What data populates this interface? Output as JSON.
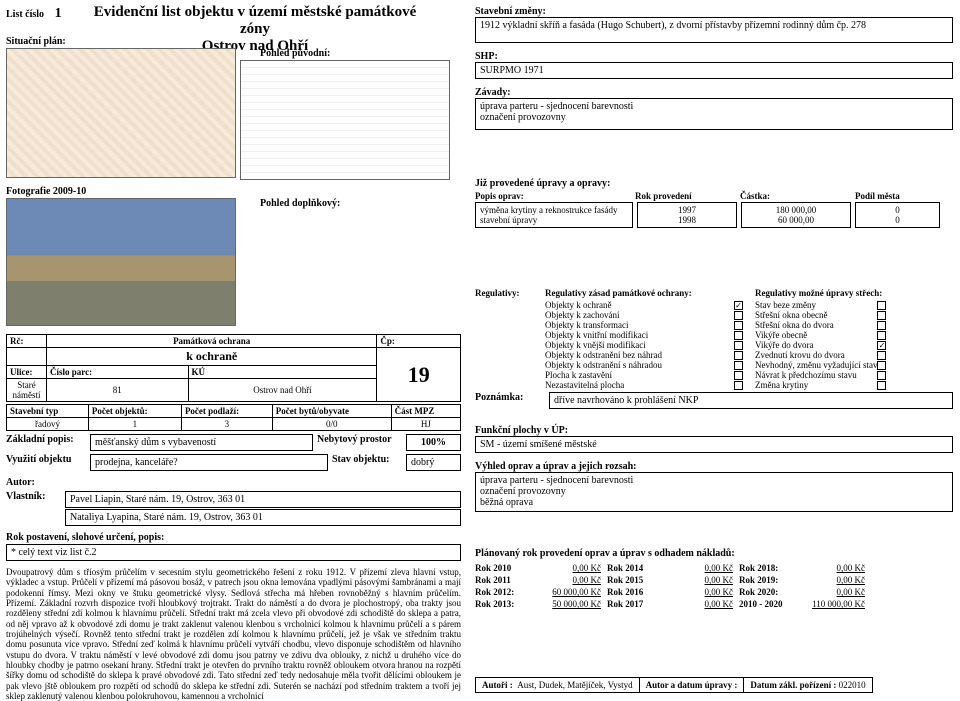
{
  "header": {
    "list_label": "List číslo",
    "list_number": "1",
    "title_line1": "Evidenční list objektu v území městské památkové zóny",
    "title_line2": "Ostrov nad Ohří",
    "plan_label": "Situační plán:",
    "view_orig_label": "Pohled původní:",
    "view_supp_label": "Pohled doplňkový:",
    "photo_label": "Fotografie 2009-10"
  },
  "left": {
    "rc_label": "Rč:",
    "ochrana_label": "Památková ochrana",
    "k_ochrane": "k ochraně",
    "cp_label": "Čp:",
    "cp_value": "19",
    "ulice_label": "Ulice:",
    "cislo_parc_label": "Číslo parc:",
    "ku_label": "KÚ",
    "ulice_value": "Staré náměstí",
    "cislo_parc_value": "81",
    "ku_value": "Ostrov nad Ohří",
    "stavtyp_label": "Stavební typ",
    "pocet_obj_label": "Počet objektů:",
    "pocet_podlazi_label": "Počet podlaží:",
    "pocet_bytu_label": "Počet bytů/obyvate",
    "cast_mpz_label": "Část MPZ",
    "stavtyp_value": "řadový",
    "pocet_obj_value": "1",
    "pocet_podlazi_value": "3",
    "pocet_bytu_value": "0/0",
    "cast_mpz_value": "HJ",
    "zakl_popis_label": "Základní popis:",
    "zakl_popis_value": "měšťanský dům s vybaveností",
    "nebyt_label": "Nebytový prostor",
    "nebyt_value": "100%",
    "vyuziti_label": "Využití objektu",
    "vyuziti_value": "prodejna, kanceláře?",
    "stav_obj_label": "Stav objektu:",
    "stav_obj_value": "dobrý",
    "autor_label": "Autor:",
    "vlastnik_label": "Vlastník:",
    "vlastnik1": "Pavel Liapin, Staré nám. 19, Ostrov, 363 01",
    "vlastnik2": "Nataliya Lyapina, Staré nám. 19, Ostrov, 363 01",
    "rok_post_label": "Rok postavení, slohové určení, popis:",
    "rok_post_ref": "* celý text viz list č.2",
    "long_desc": "Dvoupatrový dům s tříosým průčelím v secesním stylu geometrického řešení z roku 1912. V přízemí zleva hlavní vstup, výkladec a vstup. Průčelí v přízemí má pásovou bosáž, v patrech jsou okna lemována vpadlými pásovými šambránami a mají podokenní římsy. Mezi okny ve štuku geometrické vlysy. Sedlová střecha má hřeben rovnoběžný s hlavním průčelím. Přízemí. Základní rozvrh dispozice tvoří hloubkový trojtrakt. Trakt do náměstí a do dvora je plochostropý, oba trakty jsou rozděleny střední zdí kolmou k hlavnímu průčelí. Střední trakt má zcela vlevo při obvodové zdi schodiště do sklepa a patra, od něj vpravo až k obvodové zdi domu je trakt zaklenut valenou klenbou s vrcholnicí kolmou k hlavnímu průčelí a s párem trojúhelných výsečí. Rovněž tento střední trakt je rozdělen zdí kolmou k hlavnímu průčelí, jež je však ve středním traktu domu posunuta více vpravo. Střední zeď kolmá k hlavnímu průčelí vytváří chodbu, vlevo disponuje schodištěm od hlavního vstupu do dvora. V traktu náměstí v levé obvodové zdi domu jsou patrny ve zdivu dva oblouky, z nichž u druhého více do hloubky chodby je patrno osekaní hrany. Střední trakt je otevřen do prvního traktu rovněž obloukem otvora hranou na rozpětí šířky domu od schodiště do sklepa k pravé obvodové zdi. Tato střední zeď tedy nedosahuje měla tvořit dělícími obloukem je pak vlevo jště obloukem pro rozpětí od schodů do sklepa ke střední zdi. Suterén se nachází pod středním traktem a tvoří jej sklep zaklenutý valenou klenbou polokruhovou, kamennou a vrcholnicí"
  },
  "right": {
    "staveb_zmeny_label": "Stavební změny:",
    "staveb_zmeny_value": "1912 výkladní skříň a fasáda (Hugo Schubert), z dvorní přístavby přízemní rodinný dům čp. 278",
    "shp_label": "SHP:",
    "shp_value": "SURPMO 1971",
    "zavady_label": "Závady:",
    "zavady_value1": "úprava parteru - sjednocení barevnosti",
    "zavady_value2": "označení provozovny",
    "jiz_prov_label": "Již provedené úpravy a opravy:",
    "th_popis": "Popis oprav:",
    "th_rok": "Rok provedení",
    "th_castka": "Částka:",
    "th_podil": "Podíl města",
    "rows": [
      {
        "popis": "výměna krytiny a reknostrukce fasády",
        "rok": "1997",
        "castka": "180 000,00",
        "podil": "0"
      },
      {
        "popis": "stavební úpravy",
        "rok": "1998",
        "castka": "60 000,00",
        "podil": "0"
      }
    ],
    "regulativy_label": "Regulativy:",
    "reg_zasad_label": "Regulativy zásad památkové ochrany:",
    "reg_strech_label": "Regulativy možné úpravy střech:",
    "reg_left": [
      {
        "t": "Objekty k ochraně",
        "c": true
      },
      {
        "t": "Objekty k zachování",
        "c": false
      },
      {
        "t": "Objekty k transformaci",
        "c": false
      },
      {
        "t": "Objekty k vnitřní modifikaci",
        "c": false
      },
      {
        "t": "Objekty k vnější modifikaci",
        "c": false
      },
      {
        "t": "Objekty k odstranění bez náhrad",
        "c": false
      },
      {
        "t": "Objekty k odstranění s náhradou",
        "c": false
      },
      {
        "t": "Plocha k zastavění",
        "c": false
      },
      {
        "t": "Nezastavitelná plocha",
        "c": false
      }
    ],
    "reg_right": [
      {
        "t": "Stav beze změny",
        "c": false
      },
      {
        "t": "Střešní okna obecně",
        "c": false
      },
      {
        "t": "Střešní okna do dvora",
        "c": false
      },
      {
        "t": "Vikýře obecně",
        "c": false
      },
      {
        "t": "Vikýře do dvora",
        "c": true
      },
      {
        "t": "Zvednutí krovu do dvora",
        "c": false
      },
      {
        "t": "Nevhodný, změnu vyžadující stav",
        "c": false
      },
      {
        "t": "Návrat k předchozímu stavu",
        "c": false
      },
      {
        "t": "Změna krytiny",
        "c": false
      }
    ],
    "poznamka_label": "Poznámka:",
    "poznamka_value": "dříve navrhováno k prohlášení NKP",
    "fup_label": "Funkční plochy v ÚP:",
    "fup_value": "SM - území smíšené městské",
    "vyhled_label": "Výhled oprav a úprav a jejich rozsah:",
    "vyhled_v1": "úprava parteru - sjednocení barevnosti",
    "vyhled_v2": "označení provozovny",
    "vyhled_v3": "běžná oprava",
    "planovany_label": "Plánovaný rok provedení oprav a úprav s odhadem nákladů:",
    "costs": [
      [
        "Rok 2010",
        "0,00 Kč",
        "Rok 2014",
        "0,00 Kč",
        "Rok 2018:",
        "0,00 Kč"
      ],
      [
        "Rok 2011",
        "0,00 Kč",
        "Rok 2015",
        "0,00 Kč",
        "Rok 2019:",
        "0,00 Kč"
      ],
      [
        "Rok 2012:",
        "60 000,00 Kč",
        "Rok 2016",
        "0,00 Kč",
        "Rok 2020:",
        "0,00 Kč"
      ],
      [
        "Rok 2013:",
        "50 000,00 Kč",
        "Rok 2017",
        "0,00 Kč",
        "2010 - 2020",
        "110 000,00 Kč"
      ]
    ]
  },
  "footer": {
    "autori_label": "Autoři :",
    "autori_value": "Aust, Dudek, Matějíček, Vystyd",
    "autor_label": "Autor a datum úpravy :",
    "datum_label": "Datum zákl. pořízení :",
    "datum_value": "022010"
  }
}
